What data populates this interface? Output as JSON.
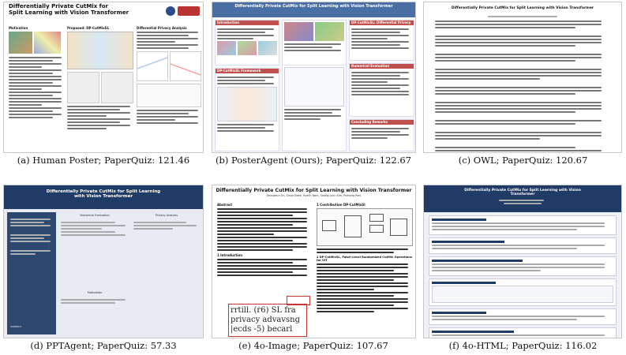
{
  "figure": {
    "panels": [
      {
        "id": "a",
        "caption": "(a) Human Poster; PaperQuiz: 121.46"
      },
      {
        "id": "b",
        "caption": "(b) PosterAgent (Ours); PaperQuiz: 122.67"
      },
      {
        "id": "c",
        "caption": "(c) OWL; PaperQuiz: 120.67"
      },
      {
        "id": "d",
        "caption": "(d) PPTAgent; PaperQuiz: 57.33"
      },
      {
        "id": "e",
        "caption": "(e) 4o-Image; PaperQuiz: 107.67"
      },
      {
        "id": "f",
        "caption": "(f) 4o-HTML; PaperQuiz: 116.02"
      }
    ]
  },
  "poster_a": {
    "title_line1": "Differentially Private CutMix for",
    "title_line2": "Split Learning with Vision Transformer",
    "sections": [
      "Motivation",
      "Proposed: DP-CutMixSL",
      "Differential Privacy Analysis"
    ]
  },
  "poster_b": {
    "title": "Differentially Private CutMix for Split Learning with Vision Transformer",
    "sections": [
      "Introduction",
      "DP-CutMixSL: Differential Privacy Analysis",
      "DP-CutMixSL Framework",
      "Numerical Evaluation",
      "Concluding Remarks"
    ]
  },
  "poster_c": {
    "title": "Differentially Private CutMix for Split Learning with Vision Transformer"
  },
  "poster_d": {
    "title": "Differentially Private CutMix for Split Learning with Vision Transformer",
    "sections": [
      "Numerical Evaluation",
      "Privacy Analysis",
      "Motivation",
      "CONTACT"
    ]
  },
  "poster_e": {
    "title": "Differentially Private CutMix for Split Learning with Vision Transformer",
    "authors": "Seungeun Oh, Sihun Beek, Hyelin Nam, Seong-Lyun Kim, Prehong Park",
    "abstract": "Abstract",
    "contribution": "1   Contribution DP-CutMixSl",
    "intro": "1   Introduction",
    "section2": "2   DP-CutMixSL, Patch-Level Randomized CutMix Operations for VIT",
    "zoom_text_1": "rrtill. (ṙ6) SL fra",
    "zoom_text_2": "privacy advavsng",
    "zoom_text_3": "|ecds -5) becarl"
  },
  "poster_f": {
    "title": "Differentially Private CutMix for Split Learning with Vision Transformer"
  },
  "colors": {
    "b_header": "#4a6fa5",
    "b_section": "#c0504d",
    "d_header": "#1f3b66",
    "f_header": "#1f3b66"
  }
}
